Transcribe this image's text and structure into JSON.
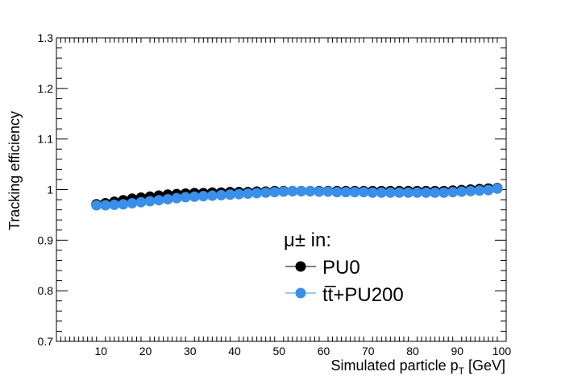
{
  "chart_data": {
    "type": "scatter",
    "title": "",
    "xlabel": "Simulated particle p",
    "xlabel_sub": "T",
    "xlabel_unit": " [GeV]",
    "ylabel": "Tracking efficiency",
    "xlim": [
      0,
      101
    ],
    "ylim": [
      0.7,
      1.3
    ],
    "x_ticks": [
      10,
      20,
      30,
      40,
      50,
      60,
      70,
      80,
      90,
      100
    ],
    "y_ticks": [
      0.7,
      0.8,
      0.9,
      1.0,
      1.1,
      1.2,
      1.3
    ],
    "y_tick_labels": [
      "0.7",
      "0.8",
      "0.9",
      "1",
      "1.1",
      "1.2",
      "1.3"
    ],
    "legend_title": "μ± in:",
    "legend_position": "center-right",
    "x": [
      9,
      11,
      13,
      15,
      17,
      19,
      21,
      23,
      25,
      27,
      29,
      31,
      33,
      35,
      37,
      39,
      41,
      43,
      45,
      47,
      49,
      51,
      53,
      55,
      57,
      59,
      61,
      63,
      65,
      67,
      69,
      71,
      73,
      75,
      77,
      79,
      81,
      83,
      85,
      87,
      89,
      91,
      93,
      95,
      97,
      99
    ],
    "series": [
      {
        "name": "PU0",
        "color": "#000000",
        "values": [
          0.971,
          0.973,
          0.976,
          0.979,
          0.982,
          0.984,
          0.986,
          0.988,
          0.99,
          0.991,
          0.992,
          0.993,
          0.993,
          0.994,
          0.994,
          0.995,
          0.995,
          0.995,
          0.996,
          0.996,
          0.997,
          0.997,
          0.997,
          0.997,
          0.997,
          0.997,
          0.997,
          0.997,
          0.997,
          0.997,
          0.997,
          0.997,
          0.997,
          0.997,
          0.997,
          0.997,
          0.997,
          0.997,
          0.997,
          0.997,
          0.998,
          0.999,
          1.0,
          1.001,
          1.002,
          1.003
        ]
      },
      {
        "name": "tt̅+PU200",
        "color": "#3a8fe8",
        "values": [
          0.969,
          0.969,
          0.97,
          0.971,
          0.973,
          0.975,
          0.977,
          0.979,
          0.981,
          0.983,
          0.985,
          0.986,
          0.987,
          0.988,
          0.989,
          0.99,
          0.991,
          0.992,
          0.993,
          0.994,
          0.995,
          0.996,
          0.997,
          0.997,
          0.997,
          0.996,
          0.996,
          0.995,
          0.995,
          0.995,
          0.995,
          0.994,
          0.994,
          0.994,
          0.994,
          0.994,
          0.994,
          0.994,
          0.994,
          0.994,
          0.995,
          0.996,
          0.997,
          0.998,
          0.999,
          1.002
        ]
      }
    ]
  }
}
